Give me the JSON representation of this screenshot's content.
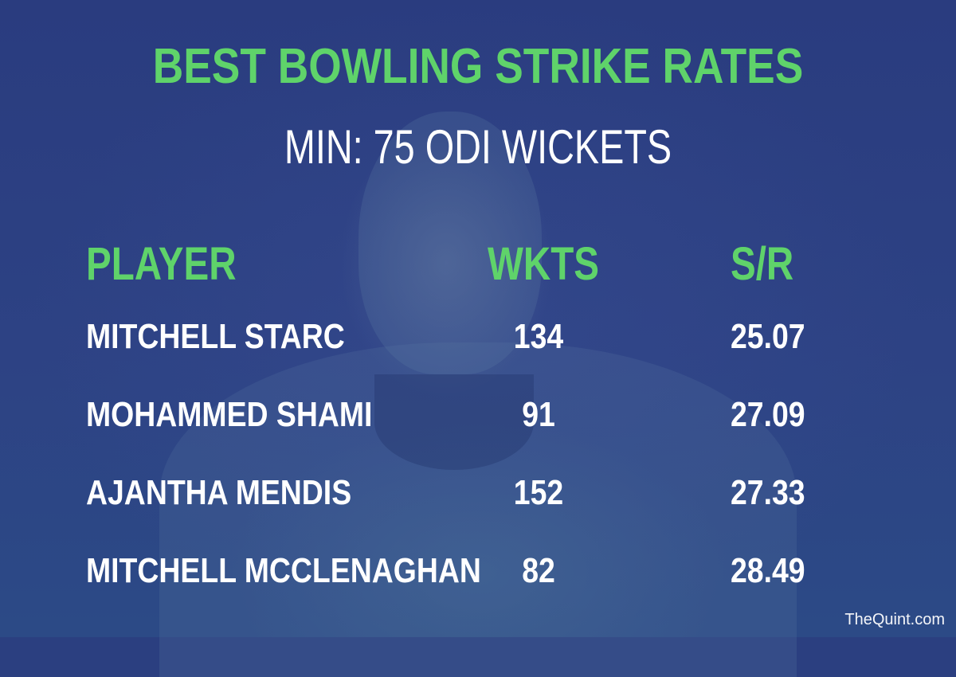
{
  "chart_data": {
    "type": "table",
    "title": "BEST BOWLING STRIKE RATES",
    "subtitle": "MIN: 75 ODI WICKETS",
    "columns": [
      "PLAYER",
      "WKTS",
      "S/R"
    ],
    "rows": [
      {
        "player": "MITCHELL STARC",
        "wkts": "134",
        "sr": "25.07"
      },
      {
        "player": "MOHAMMED SHAMI",
        "wkts": "91",
        "sr": "27.09"
      },
      {
        "player": "AJANTHA MENDIS",
        "wkts": "152",
        "sr": "27.33"
      },
      {
        "player": "MITCHELL MCCLENAGHAN",
        "wkts": "82",
        "sr": "28.49"
      }
    ]
  },
  "brand": "TheQuint.com",
  "colors": {
    "background": "#2b3f80",
    "accent": "#5fd36a",
    "text": "#ffffff"
  }
}
